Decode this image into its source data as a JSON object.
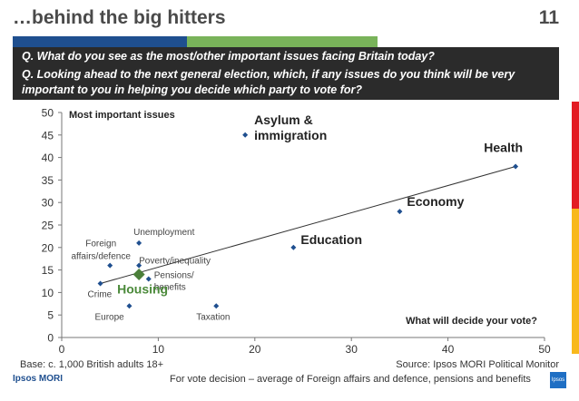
{
  "header": {
    "title": "…behind the big hitters",
    "page_number": "11"
  },
  "questions": {
    "q1": "Q. What do you see as the most/other important issues facing Britain today?",
    "q2": "Q. Looking ahead to the next general election, which, if any issues do you think will be very important to you in helping you decide which party to vote for?"
  },
  "footer": {
    "base": "Base: c. 1,000 British adults 18+",
    "source": "Source: Ipsos MORI Political Monitor",
    "note": "For vote decision – average of Foreign affairs and defence, pensions and benefits",
    "logo_left": "Ipsos MORI",
    "logo_right": "Ipsos"
  },
  "colors": {
    "header_bar_blue": "#1f4f8f",
    "header_bar_green": "#79b35a",
    "question_bg": "#2b2b2b",
    "point_blue": "#1f4f8f",
    "housing_green": "#4b7f3a",
    "strip_red": "#e31b23",
    "strip_yellow": "#f8b81c"
  },
  "chart_data": {
    "type": "scatter",
    "title": "",
    "xlabel": "",
    "ylabel": "",
    "xlim": [
      0,
      50
    ],
    "ylim": [
      0,
      50
    ],
    "x_ticks": [
      0,
      10,
      20,
      30,
      40,
      50
    ],
    "y_ticks": [
      0,
      5,
      10,
      15,
      20,
      25,
      30,
      35,
      40,
      45,
      50
    ],
    "grid": false,
    "y_axis_annotation": "Most important issues",
    "x_axis_annotation": "What will decide your vote?",
    "points": [
      {
        "label": "Asylum & immigration",
        "x": 19,
        "y": 45,
        "emphasis": "large"
      },
      {
        "label": "Health",
        "x": 47,
        "y": 38,
        "emphasis": "large"
      },
      {
        "label": "Economy",
        "x": 35,
        "y": 28,
        "emphasis": "large"
      },
      {
        "label": "Education",
        "x": 24,
        "y": 20,
        "emphasis": "large"
      },
      {
        "label": "Unemployment",
        "x": 8,
        "y": 21,
        "emphasis": "small"
      },
      {
        "label": "Foreign affairs/defence",
        "x": 5,
        "y": 16,
        "emphasis": "small"
      },
      {
        "label": "Poverty/inequality",
        "x": 8,
        "y": 16,
        "emphasis": "small"
      },
      {
        "label": "Pensions/ benefits",
        "x": 9,
        "y": 13,
        "emphasis": "small"
      },
      {
        "label": "Crime",
        "x": 4,
        "y": 12,
        "emphasis": "small"
      },
      {
        "label": "Housing",
        "x": 8,
        "y": 14,
        "emphasis": "highlight"
      },
      {
        "label": "Europe",
        "x": 7,
        "y": 7,
        "emphasis": "small"
      },
      {
        "label": "Taxation",
        "x": 16,
        "y": 7,
        "emphasis": "small"
      }
    ],
    "trendline": {
      "from": [
        4,
        12
      ],
      "to": [
        47,
        38
      ]
    }
  }
}
